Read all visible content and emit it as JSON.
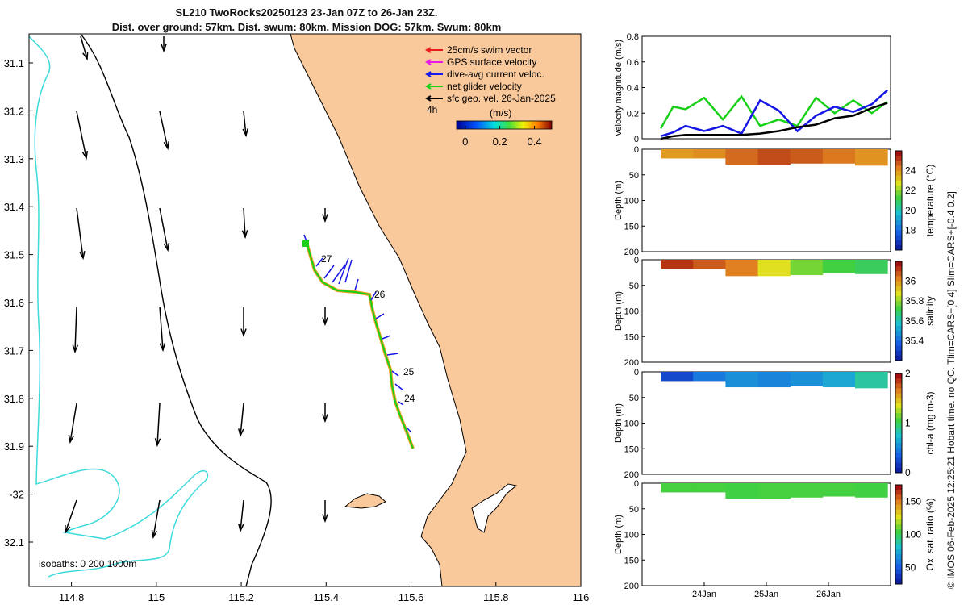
{
  "title_line1": "SL210 TwoRocks20250123 23-Jan 07Z to 26-Jan 23Z.",
  "title_line2": "Dist. over ground: 57km. Dist. swum: 80km. Mission DOG: 57km. Swum: 80km",
  "side_note": "© IMOS 06-Feb-2025 12:25:21 Hobart time. no QC. Tlim=CARS+[0 4] Slim=CARS+[-0.4 0.2]",
  "colors": {
    "land": "#f9c89b",
    "coast": "#000000",
    "isobath_shallow": "#3cdadb",
    "track_avg": "#1515e6",
    "track_net": "#18d018",
    "vel_black": "#000000"
  },
  "map": {
    "lon_ticks": [
      "114.8",
      "115",
      "115.2",
      "115.4",
      "115.6",
      "115.8",
      "116"
    ],
    "lat_ticks": [
      "31.1",
      "31.2",
      "31.3",
      "31.4",
      "31.5",
      "31.6",
      "31.7",
      "31.8",
      "31.9",
      "-32",
      "32.1"
    ],
    "day_labels": [
      "27",
      "26",
      "25",
      "24"
    ],
    "isobaths_label": "isobaths: 0   200  1000m",
    "legend": [
      {
        "label": "25cm/s swim vector",
        "color": "#e61b1b"
      },
      {
        "label": "GPS surface velocity",
        "color": "#e61be6"
      },
      {
        "label": "dive-avg current veloc.",
        "color": "#1b1be6"
      },
      {
        "label": "net glider velocity",
        "color": "#18d018"
      },
      {
        "label": "sfc geo. vel. 26-Jan-2025",
        "color": "#000000"
      }
    ],
    "legend_4h": "4h",
    "colorbar_label": "(m/s)",
    "colorbar_ticks": [
      "0",
      "0.2",
      "0.4"
    ]
  },
  "chart_data": [
    {
      "type": "line",
      "title": "",
      "xlabel": "",
      "ylabel": "velocity magnitude (m/s)",
      "ylim": [
        0,
        0.8
      ],
      "yticks": [
        "0",
        "0.2",
        "0.4",
        "0.6",
        "0.8"
      ],
      "x_days": [
        23.3,
        23.5,
        23.7,
        24.0,
        24.3,
        24.6,
        24.9,
        25.2,
        25.5,
        25.8,
        26.1,
        26.4,
        26.7,
        26.95
      ],
      "series": [
        {
          "name": "net glider velocity",
          "color": "#18d018",
          "values": [
            0.08,
            0.25,
            0.23,
            0.32,
            0.15,
            0.33,
            0.1,
            0.15,
            0.1,
            0.32,
            0.2,
            0.3,
            0.2,
            0.29
          ]
        },
        {
          "name": "dive-avg current veloc.",
          "color": "#1515e6",
          "values": [
            0.02,
            0.05,
            0.1,
            0.06,
            0.1,
            0.04,
            0.3,
            0.22,
            0.06,
            0.18,
            0.25,
            0.21,
            0.27,
            0.38
          ]
        },
        {
          "name": "sfc geo. vel.",
          "color": "#000000",
          "values": [
            0.0,
            0.02,
            0.03,
            0.03,
            0.03,
            0.03,
            0.04,
            0.06,
            0.09,
            0.11,
            0.16,
            0.18,
            0.24,
            0.28
          ]
        }
      ]
    },
    {
      "type": "heatmap",
      "variable": "temperature",
      "ylabel": "Depth (m)",
      "colorbar_label": "temperature (°C)",
      "ylim": [
        0,
        200
      ],
      "yticks": [
        "0",
        "50",
        "100",
        "150",
        "200"
      ],
      "clim": [
        16,
        26
      ],
      "cticks": [
        "18",
        "20",
        "22",
        "24"
      ],
      "x_days": [
        23.3,
        26.95
      ],
      "max_depth": [
        18,
        18,
        30,
        30,
        28,
        28,
        32
      ],
      "values": [
        24.1,
        24.3,
        24.8,
        25.2,
        25.0,
        24.6,
        24.2
      ]
    },
    {
      "type": "heatmap",
      "variable": "salinity",
      "ylabel": "Depth (m)",
      "colorbar_label": "salinity",
      "ylim": [
        0,
        200
      ],
      "yticks": [
        "0",
        "50",
        "100",
        "150",
        "200"
      ],
      "clim": [
        35.2,
        36.2
      ],
      "cticks": [
        "35.4",
        "35.6",
        "35.8",
        "36"
      ],
      "x_days": [
        23.3,
        26.95
      ],
      "max_depth": [
        18,
        18,
        32,
        32,
        30,
        26,
        28
      ],
      "values": [
        36.15,
        36.1,
        36.05,
        35.9,
        35.8,
        35.75,
        35.72
      ]
    },
    {
      "type": "heatmap",
      "variable": "chl-a",
      "ylabel": "Depth (m)",
      "colorbar_label": "chl-a (mg m-3)",
      "ylim": [
        0,
        200
      ],
      "yticks": [
        "0",
        "50",
        "100",
        "150",
        "200"
      ],
      "clim": [
        0,
        2
      ],
      "cticks": [
        "0",
        "1",
        "2"
      ],
      "x_days": [
        23.3,
        26.95
      ],
      "max_depth": [
        18,
        18,
        30,
        30,
        28,
        30,
        32
      ],
      "values": [
        0.3,
        0.5,
        0.6,
        0.55,
        0.6,
        0.7,
        0.9
      ]
    },
    {
      "type": "heatmap",
      "variable": "oxygen",
      "ylabel": "Depth (m)",
      "colorbar_label": "Ox. sat. ratio (%)",
      "ylim": [
        0,
        200
      ],
      "yticks": [
        "0",
        "50",
        "100",
        "150",
        "200"
      ],
      "clim": [
        25,
        175
      ],
      "cticks": [
        "50",
        "100",
        "150"
      ],
      "x_days": [
        23.3,
        26.95
      ],
      "max_depth": [
        18,
        18,
        30,
        30,
        28,
        26,
        28
      ],
      "values": [
        108,
        108,
        107,
        108,
        108,
        108,
        107
      ]
    }
  ],
  "time_ticks": [
    "24Jan",
    "25Jan",
    "26Jan"
  ]
}
